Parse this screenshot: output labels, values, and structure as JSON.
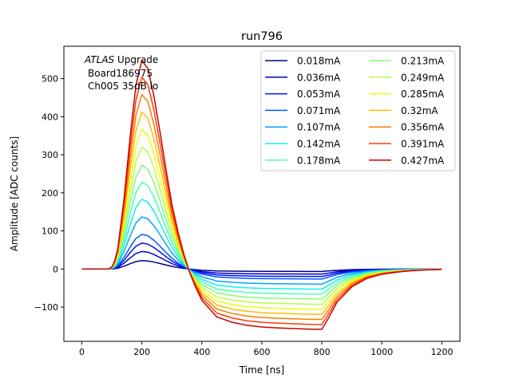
{
  "chart_data": {
    "type": "line",
    "title": "run796",
    "xlabel": "Time [ns]",
    "ylabel": "Amplitude [ADC counts]",
    "xlim": [
      -60,
      1260
    ],
    "ylim": [
      -190,
      585
    ],
    "xticks": [
      0,
      200,
      400,
      600,
      800,
      1000,
      1200
    ],
    "yticks": [
      -100,
      0,
      100,
      200,
      300,
      400,
      500
    ],
    "grid": false,
    "legend_position": "top-right",
    "legend_columns": 2,
    "annotation": {
      "italic": "ATLAS",
      "rest": " Upgrade",
      "line2": "Board186975",
      "line3": "Ch005 35dB lo"
    },
    "pulse_shape": {
      "x": [
        0,
        90,
        100,
        110,
        120,
        140,
        160,
        180,
        200,
        220,
        240,
        260,
        280,
        300,
        320,
        340,
        360,
        380,
        400,
        450,
        500,
        550,
        600,
        650,
        700,
        750,
        780,
        800,
        820,
        850,
        900,
        950,
        1000,
        1050,
        1100,
        1150,
        1200
      ],
      "y": [
        0,
        0,
        0.01,
        0.04,
        0.1,
        0.33,
        0.62,
        0.88,
        1.0,
        0.96,
        0.83,
        0.66,
        0.48,
        0.31,
        0.18,
        0.07,
        -0.02,
        -0.09,
        -0.15,
        -0.23,
        -0.255,
        -0.27,
        -0.278,
        -0.282,
        -0.285,
        -0.288,
        -0.289,
        -0.289,
        -0.24,
        -0.16,
        -0.085,
        -0.045,
        -0.025,
        -0.015,
        -0.008,
        -0.004,
        -0.002
      ]
    },
    "series": [
      {
        "name": "0.018mA",
        "peak": 22,
        "color": "#00007f"
      },
      {
        "name": "0.036mA",
        "peak": 46,
        "color": "#0000c8"
      },
      {
        "name": "0.053mA",
        "peak": 68,
        "color": "#0010ff"
      },
      {
        "name": "0.071mA",
        "peak": 91,
        "color": "#0058ff"
      },
      {
        "name": "0.107mA",
        "peak": 137,
        "color": "#00a4ff"
      },
      {
        "name": "0.142mA",
        "peak": 183,
        "color": "#10f0e6"
      },
      {
        "name": "0.178mA",
        "peak": 228,
        "color": "#4affad"
      },
      {
        "name": "0.213mA",
        "peak": 273,
        "color": "#80ff77"
      },
      {
        "name": "0.249mA",
        "peak": 320,
        "color": "#b7ff40"
      },
      {
        "name": "0.285mA",
        "peak": 366,
        "color": "#eaff0d"
      },
      {
        "name": "0.32mA",
        "peak": 412,
        "color": "#ffbe00"
      },
      {
        "name": "0.356mA",
        "peak": 458,
        "color": "#ff7c00"
      },
      {
        "name": "0.391mA",
        "peak": 504,
        "color": "#ff3b00"
      },
      {
        "name": "0.427mA",
        "peak": 548,
        "color": "#c80000"
      }
    ]
  }
}
